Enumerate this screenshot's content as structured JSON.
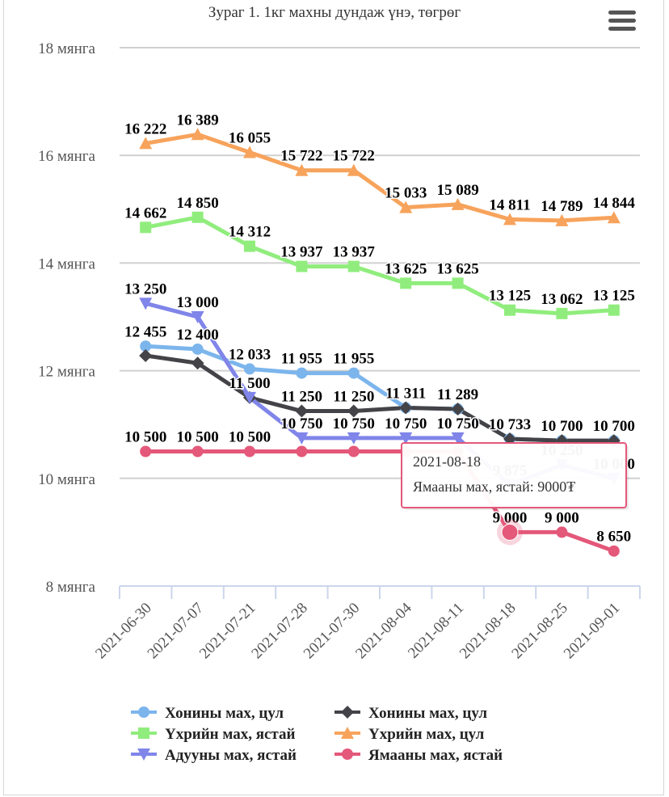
{
  "chart_data": {
    "type": "line",
    "title": "Зураг 1. 1кг махны дундаж үнэ, төгрөг",
    "xlabel": "",
    "ylabel": "",
    "ylim": [
      8000,
      18000
    ],
    "yticks": [
      {
        "value": 8000,
        "label": "8 мянга"
      },
      {
        "value": 10000,
        "label": "10 мянга"
      },
      {
        "value": 12000,
        "label": "12 мянга"
      },
      {
        "value": 14000,
        "label": "14 мянга"
      },
      {
        "value": 16000,
        "label": "16 мянга"
      },
      {
        "value": 18000,
        "label": "18 мянга"
      }
    ],
    "categories": [
      "2021-06-30",
      "2021-07-07",
      "2021-07-21",
      "2021-07-28",
      "2021-07-30",
      "2021-08-04",
      "2021-08-11",
      "2021-08-18",
      "2021-08-25",
      "2021-09-01"
    ],
    "series": [
      {
        "name": "Хонины мах, цул",
        "color": "#7cb5ec",
        "marker": "circle",
        "values": [
          12455,
          12400,
          12033,
          11955,
          11955,
          11311,
          11289,
          10733,
          10700,
          10700
        ],
        "labels": [
          "12 455",
          "12 400",
          "12 033",
          "11 955",
          "11 955",
          "",
          "",
          "",
          "",
          ""
        ]
      },
      {
        "name": "Хонины мах, цул",
        "color": "#434348",
        "marker": "diamond",
        "values": [
          12280,
          12140,
          11500,
          11250,
          11250,
          11311,
          11289,
          10733,
          10700,
          10700
        ],
        "labels": [
          "",
          "",
          "",
          "11 250",
          "11 250",
          "11 311",
          "11 289",
          "10 733",
          "10 700",
          "10 700"
        ]
      },
      {
        "name": "Үхрийн мах, ястай",
        "color": "#90ed7d",
        "marker": "square",
        "values": [
          14662,
          14850,
          14312,
          13937,
          13937,
          13625,
          13625,
          13125,
          13062,
          13125
        ],
        "labels": [
          "14 662",
          "14 850",
          "14 312",
          "13 937",
          "13 937",
          "13 625",
          "13 625",
          "13 125",
          "13 062",
          "13 125"
        ]
      },
      {
        "name": "Үхрийн мах, цул",
        "color": "#f7a35c",
        "marker": "triangle",
        "values": [
          16222,
          16389,
          16055,
          15722,
          15722,
          15033,
          15089,
          14811,
          14789,
          14844
        ],
        "labels": [
          "16 222",
          "16 389",
          "16 055",
          "15 722",
          "15 722",
          "15 033",
          "15 089",
          "14 811",
          "14 789",
          "14 844"
        ]
      },
      {
        "name": "Адууны мах, ястай",
        "color": "#8085e9",
        "marker": "triangle-down",
        "values": [
          13250,
          13000,
          11500,
          10750,
          10750,
          10750,
          10750,
          9875,
          10250,
          10000
        ],
        "labels": [
          "13 250",
          "13 000",
          "11 500",
          "10 750",
          "10 750",
          "10 750",
          "10 750",
          "9 875",
          "10 250",
          "10 000"
        ]
      },
      {
        "name": "Ямааны мах, ястай",
        "color": "#e4587a",
        "marker": "circle",
        "values": [
          10500,
          10500,
          10500,
          10500,
          10500,
          10500,
          10500,
          9000,
          9000,
          8650
        ],
        "labels": [
          "10 500",
          "10 500",
          "10 500",
          "",
          "",
          "",
          "",
          "9 000",
          "9 000",
          "8 650"
        ]
      }
    ],
    "legend_position": "bottom"
  },
  "tooltip": {
    "date": "2021-08-18",
    "text": "Ямааны мах, ястай: 9000₮",
    "series_index": 5,
    "point_index": 7
  },
  "menu": {
    "icon": "hamburger-menu-icon"
  }
}
